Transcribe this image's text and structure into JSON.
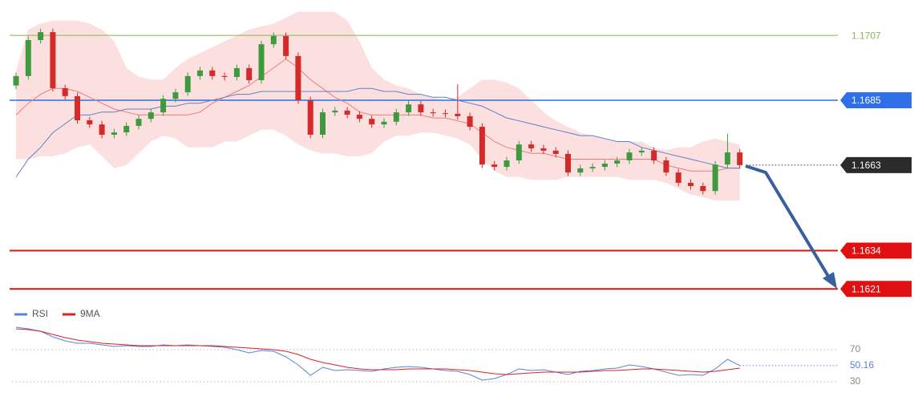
{
  "chart_data": [
    {
      "type": "candlestick",
      "ylim": [
        1.1617,
        1.1719
      ],
      "up_color": "#3f9a3f",
      "down_color": "#d42a2a",
      "open": [
        1.169,
        1.16932,
        1.17054,
        1.17081,
        1.16891,
        1.16864,
        1.16782,
        1.16768,
        1.16733,
        1.16741,
        1.16763,
        1.16787,
        1.16809,
        1.16855,
        1.16877,
        1.16932,
        1.16951,
        1.16932,
        1.16929,
        1.16959,
        1.16918,
        1.1704,
        1.17068,
        1.17,
        1.1685,
        1.16733,
        1.16809,
        1.16815,
        1.16801,
        1.16787,
        1.16768,
        1.16777,
        1.16809,
        1.16836,
        1.16809,
        1.16806,
        1.16804,
        1.16796,
        1.1676,
        1.16632,
        1.16624,
        1.16646,
        1.167,
        1.16687,
        1.16679,
        1.16668,
        1.16605,
        1.16619,
        1.16624,
        1.16635,
        1.16646,
        1.16673,
        1.16679,
        1.16646,
        1.16605,
        1.1657,
        1.16559,
        1.16542,
        1.16632,
        1.16673
      ],
      "high": [
        1.16944,
        1.17066,
        1.17093,
        1.17093,
        1.16903,
        1.16876,
        1.16794,
        1.1678,
        1.16753,
        1.16775,
        1.16799,
        1.16821,
        1.16867,
        1.16889,
        1.16944,
        1.16963,
        1.16963,
        1.16944,
        1.16971,
        1.16971,
        1.17052,
        1.1708,
        1.1708,
        1.17012,
        1.16862,
        1.16821,
        1.16827,
        1.16827,
        1.16813,
        1.16799,
        1.16789,
        1.16821,
        1.16848,
        1.16848,
        1.16821,
        1.16818,
        1.16904,
        1.16808,
        1.16772,
        1.16644,
        1.16658,
        1.16712,
        1.16712,
        1.16699,
        1.16691,
        1.1668,
        1.16631,
        1.16636,
        1.16647,
        1.16658,
        1.16685,
        1.16691,
        1.16691,
        1.16658,
        1.16617,
        1.16582,
        1.16571,
        1.16644,
        1.16736,
        1.16685
      ],
      "low": [
        1.16888,
        1.1692,
        1.17042,
        1.16879,
        1.16852,
        1.1677,
        1.16756,
        1.16721,
        1.16721,
        1.16729,
        1.16751,
        1.16775,
        1.16797,
        1.16843,
        1.16865,
        1.1692,
        1.1692,
        1.16917,
        1.16917,
        1.16906,
        1.16906,
        1.17028,
        1.16988,
        1.16838,
        1.16721,
        1.16721,
        1.16797,
        1.16789,
        1.16775,
        1.16756,
        1.16756,
        1.16765,
        1.16797,
        1.16797,
        1.16794,
        1.16792,
        1.16784,
        1.16748,
        1.1662,
        1.16612,
        1.16612,
        1.16634,
        1.16675,
        1.16667,
        1.16656,
        1.16593,
        1.16593,
        1.16607,
        1.16612,
        1.16623,
        1.16634,
        1.16661,
        1.16634,
        1.16593,
        1.16558,
        1.16547,
        1.1653,
        1.1653,
        1.1662,
        1.16618
      ],
      "close": [
        1.16932,
        1.17054,
        1.17081,
        1.16891,
        1.16864,
        1.16782,
        1.16768,
        1.16733,
        1.16741,
        1.16763,
        1.16787,
        1.16809,
        1.16855,
        1.16877,
        1.16932,
        1.16951,
        1.16932,
        1.16929,
        1.16959,
        1.16918,
        1.1704,
        1.17068,
        1.17,
        1.1685,
        1.16733,
        1.16809,
        1.16815,
        1.16801,
        1.16787,
        1.16768,
        1.16777,
        1.16809,
        1.16836,
        1.16809,
        1.16806,
        1.16804,
        1.16796,
        1.1676,
        1.16632,
        1.16624,
        1.16646,
        1.167,
        1.16687,
        1.16679,
        1.16668,
        1.16605,
        1.16619,
        1.16624,
        1.16635,
        1.16646,
        1.16673,
        1.16679,
        1.16646,
        1.16605,
        1.1657,
        1.16559,
        1.16542,
        1.16632,
        1.16673,
        1.1663
      ],
      "band": {
        "color": "#fbd3d3",
        "upper": [
          1.1695,
          1.1709,
          1.1711,
          1.1712,
          1.1712,
          1.1712,
          1.1711,
          1.1709,
          1.1705,
          1.1696,
          1.1693,
          1.1692,
          1.1692,
          1.1696,
          1.1699,
          1.1701,
          1.1703,
          1.1705,
          1.1707,
          1.1709,
          1.171,
          1.1711,
          1.1713,
          1.1715,
          1.1715,
          1.1715,
          1.1715,
          1.1712,
          1.1705,
          1.1696,
          1.1692,
          1.169,
          1.1689,
          1.1687,
          1.1686,
          1.1685,
          1.1686,
          1.1689,
          1.1692,
          1.1692,
          1.1691,
          1.1689,
          1.1685,
          1.1681,
          1.1678,
          1.1676,
          1.1674,
          1.1673,
          1.1672,
          1.1671,
          1.1671,
          1.1671,
          1.1669,
          1.1668,
          1.1669,
          1.1669,
          1.1671,
          1.1672,
          1.1671,
          1.167
        ],
        "lower": [
          1.1665,
          1.1665,
          1.1666,
          1.1666,
          1.1667,
          1.1669,
          1.167,
          1.1666,
          1.1662,
          1.1663,
          1.1667,
          1.1671,
          1.1673,
          1.1672,
          1.1669,
          1.1669,
          1.1669,
          1.1671,
          1.1671,
          1.1673,
          1.1675,
          1.1675,
          1.1673,
          1.167,
          1.1668,
          1.1667,
          1.1667,
          1.1666,
          1.1666,
          1.1667,
          1.1671,
          1.1673,
          1.1673,
          1.1674,
          1.1674,
          1.1673,
          1.1672,
          1.167,
          1.1665,
          1.1661,
          1.1659,
          1.1659,
          1.1658,
          1.1658,
          1.1658,
          1.1659,
          1.1659,
          1.1659,
          1.1659,
          1.1659,
          1.1658,
          1.1658,
          1.1658,
          1.1657,
          1.1655,
          1.1653,
          1.1652,
          1.1651,
          1.1651,
          1.1651
        ]
      },
      "lines": [
        {
          "color": "#f07a7a",
          "values": [
            1.168,
            1.1684,
            1.1687,
            1.1689,
            1.1689,
            1.1688,
            1.1686,
            1.1684,
            1.1682,
            1.1681,
            1.168,
            1.168,
            1.168,
            1.168,
            1.168,
            1.1681,
            1.1684,
            1.1686,
            1.1688,
            1.169,
            1.1693,
            1.1696,
            1.1699,
            1.1696,
            1.1692,
            1.1689,
            1.1686,
            1.1684,
            1.1681,
            1.168,
            1.168,
            1.168,
            1.168,
            1.168,
            1.1679,
            1.1679,
            1.1678,
            1.1677,
            1.1674,
            1.1671,
            1.1669,
            1.1668,
            1.1667,
            1.1667,
            1.1666,
            1.1665,
            1.1665,
            1.1665,
            1.1665,
            1.1665,
            1.1665,
            1.1665,
            1.1665,
            1.1663,
            1.1662,
            1.1661,
            1.1661,
            1.1661,
            1.1662,
            1.1662
          ]
        },
        {
          "color": "#5f7fc9",
          "values": [
            1.1659,
            1.1665,
            1.1669,
            1.1674,
            1.1677,
            1.168,
            1.168,
            1.1681,
            1.1681,
            1.1682,
            1.1682,
            1.1682,
            1.1683,
            1.1683,
            1.1684,
            1.1684,
            1.1685,
            1.1686,
            1.1687,
            1.1687,
            1.1688,
            1.1688,
            1.1688,
            1.1688,
            1.1688,
            1.1688,
            1.1688,
            1.1688,
            1.1689,
            1.1689,
            1.1688,
            1.1688,
            1.1687,
            1.1687,
            1.1686,
            1.1686,
            1.1685,
            1.1684,
            1.1683,
            1.1681,
            1.1679,
            1.1678,
            1.1677,
            1.1676,
            1.1675,
            1.1674,
            1.1673,
            1.1673,
            1.1672,
            1.1671,
            1.1671,
            1.1669,
            1.1668,
            1.1667,
            1.1666,
            1.1665,
            1.1664,
            1.1663,
            1.1662,
            1.1662
          ]
        }
      ],
      "levels": [
        {
          "value": 1.1707,
          "color": "#86b84a",
          "label_style": "text",
          "line_style": "solid",
          "line_width": 1
        },
        {
          "value": 1.1685,
          "color": "#2f6fe8",
          "label_style": "box",
          "line_style": "solid",
          "line_width": 1.5
        },
        {
          "value": 1.1663,
          "color": "#2b2b2b",
          "label_style": "box",
          "line_style": "dotted",
          "line_width": 1
        },
        {
          "value": 1.1634,
          "color": "#e01010",
          "label_style": "box",
          "line_style": "solid",
          "line_width": 2
        },
        {
          "value": 1.1621,
          "color": "#e01010",
          "label_style": "box",
          "line_style": "solid",
          "line_width": 2
        }
      ]
    },
    {
      "type": "line",
      "ylim": [
        11,
        101
      ],
      "yticks": [
        30,
        70
      ],
      "grid": true,
      "series": [
        {
          "name": "RSI",
          "color": "#5b82d8",
          "values": [
            98,
            96,
            93,
            86,
            81,
            78,
            78,
            76,
            74,
            75,
            74,
            74,
            76,
            75,
            76,
            75,
            74,
            73,
            70,
            66,
            69,
            68,
            61,
            51,
            38,
            48,
            44,
            45,
            44,
            43,
            46,
            48,
            49,
            48,
            46,
            44,
            43,
            39,
            32,
            34,
            39,
            46,
            44,
            45,
            42,
            39,
            43,
            44,
            46,
            47,
            51,
            49,
            46,
            42,
            38,
            39,
            38,
            46,
            58,
            50.16
          ]
        },
        {
          "name": "9MA",
          "color": "#e02020",
          "values": [
            96,
            95,
            93,
            89,
            85,
            82,
            80,
            78,
            77,
            76,
            75,
            75,
            75,
            75,
            75,
            75,
            75,
            74,
            73,
            72,
            71,
            70,
            68,
            64,
            58,
            54,
            51,
            48,
            46,
            45,
            45,
            45,
            46,
            46,
            46,
            46,
            45,
            44,
            42,
            40,
            39,
            40,
            41,
            42,
            42,
            42,
            42,
            43,
            44,
            44,
            45,
            46,
            46,
            45,
            44,
            43,
            42,
            43,
            45,
            47
          ]
        }
      ]
    }
  ]
}
